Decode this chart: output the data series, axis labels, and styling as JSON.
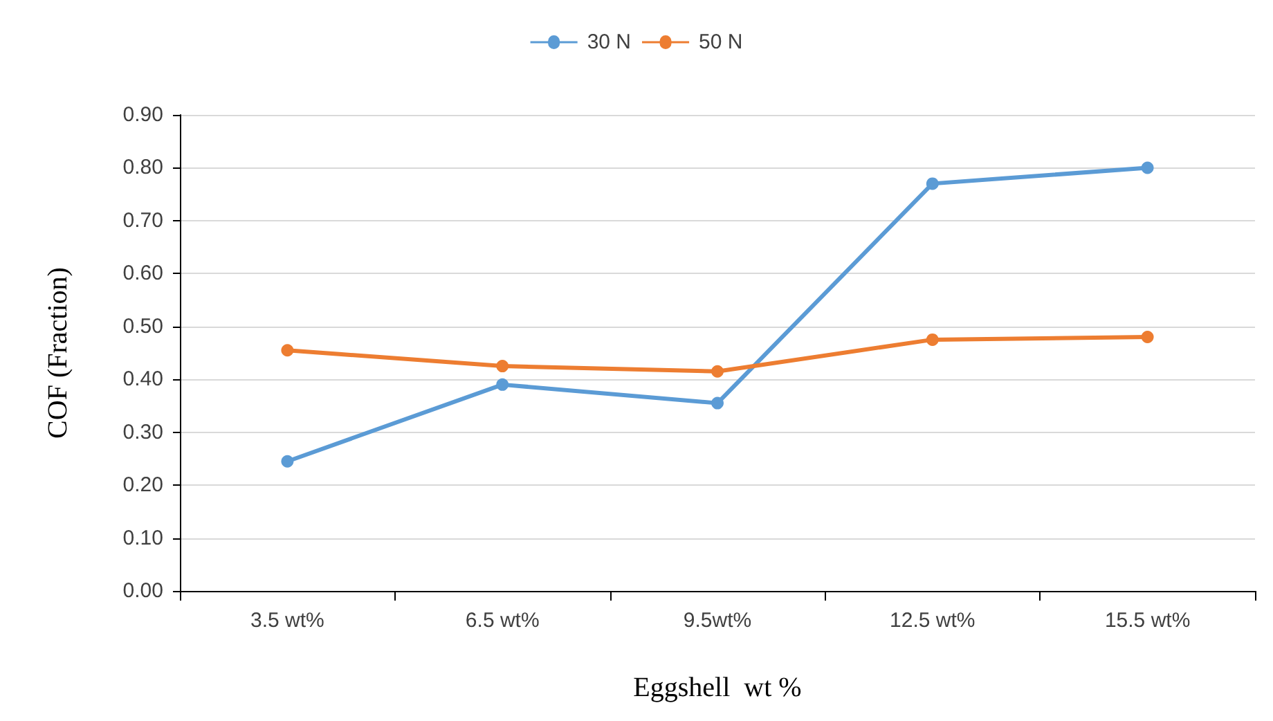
{
  "chart_data": {
    "type": "line",
    "xlabel": "Eggshell  wt %",
    "ylabel": "COF (Fraction)",
    "categories": [
      "3.5 wt%",
      "6.5 wt%",
      "9.5wt%",
      "12.5 wt%",
      "15.5 wt%"
    ],
    "series": [
      {
        "name": "30 N",
        "color": "#5b9bd5",
        "values": [
          0.245,
          0.39,
          0.355,
          0.77,
          0.8
        ]
      },
      {
        "name": "50 N",
        "color": "#ed7d31",
        "values": [
          0.455,
          0.425,
          0.415,
          0.475,
          0.48
        ]
      }
    ],
    "ylim": [
      0,
      0.9
    ],
    "yticks": [
      {
        "value": 0,
        "label": "0.00"
      },
      {
        "value": 0.1,
        "label": "0.10"
      },
      {
        "value": 0.2,
        "label": "0.20"
      },
      {
        "value": 0.3,
        "label": "0.30"
      },
      {
        "value": 0.4,
        "label": "0.40"
      },
      {
        "value": 0.5,
        "label": "0.50"
      },
      {
        "value": 0.6,
        "label": "0.60"
      },
      {
        "value": 0.7,
        "label": "0.70"
      },
      {
        "value": 0.8,
        "label": "0.80"
      },
      {
        "value": 0.9,
        "label": "0.90"
      }
    ],
    "grid": "y",
    "legend": "top",
    "marker": "circle",
    "line_style": "solid"
  }
}
